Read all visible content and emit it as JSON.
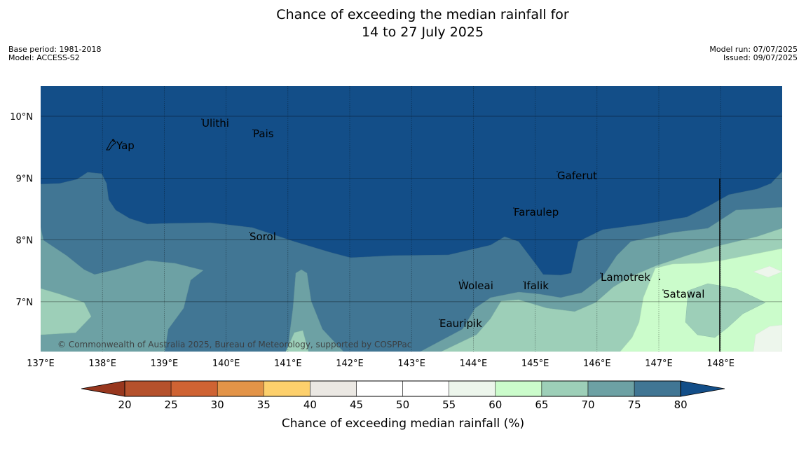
{
  "title": {
    "line1": "Chance of exceeding the median rainfall for",
    "line2": "14 to 27 July 2025"
  },
  "meta": {
    "base_period": "Base period: 1981-2018",
    "model": "Model: ACCESS-S2",
    "model_run": "Model run: 07/07/2025",
    "issued": "Issued: 09/07/2025"
  },
  "map": {
    "lon_ticks": [
      "137°E",
      "138°E",
      "139°E",
      "140°E",
      "141°E",
      "142°E",
      "143°E",
      "144°E",
      "145°E",
      "146°E",
      "147°E",
      "148°E"
    ],
    "lat_ticks": [
      "10°N",
      "9°N",
      "8°N",
      "7°N"
    ],
    "places": [
      "Ulithi",
      "Pais",
      "Yap",
      "Gaferut",
      "Faraulep",
      "Sorol",
      "Lamotrek",
      "Woleai",
      "Ifalik",
      "Satawal",
      "Eauripik"
    ],
    "copyright": "© Commonwealth of Australia 2025, Bureau of Meteorology, supported by COSPPac"
  },
  "legend": {
    "label": "Chance of exceeding median rainfall (%)",
    "ticks": [
      "20",
      "25",
      "30",
      "35",
      "40",
      "45",
      "50",
      "55",
      "60",
      "65",
      "70",
      "75",
      "80"
    ],
    "colors": {
      "below_20": "#98371e",
      "20_25": "#b5512c",
      "25_30": "#cf6333",
      "30_35": "#e39448",
      "35_40": "#fdd06c",
      "40_45": "#ebe8e3",
      "45_50": "#ffffff",
      "50_55": "#ffffff",
      "55_60": "#edf6ec",
      "60_65": "#cbfccb",
      "65_70": "#9dcfb8",
      "70_75": "#6da1a4",
      "75_80": "#417694",
      "above_80": "#134e88"
    }
  }
}
